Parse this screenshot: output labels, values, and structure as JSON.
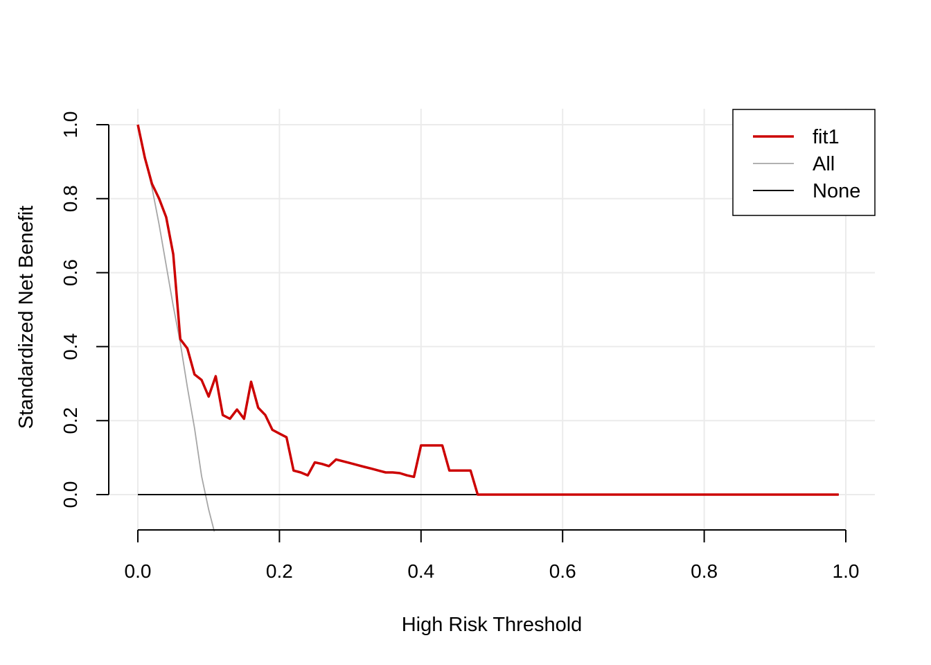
{
  "chart_data": {
    "type": "line",
    "xlabel": "High Risk Threshold",
    "ylabel": "Standardized Net Benefit",
    "xlim": [
      0.0,
      1.0
    ],
    "ylim": [
      -0.1,
      1.0
    ],
    "x_ticks": [
      "0.0",
      "0.2",
      "0.4",
      "0.6",
      "0.8",
      "1.0"
    ],
    "y_ticks": [
      "0.0",
      "0.2",
      "0.4",
      "0.6",
      "0.8",
      "1.0"
    ],
    "grid": true,
    "legend_position": "top-right",
    "series": [
      {
        "name": "fit1",
        "color": "#cc0000",
        "x": [
          0.0,
          0.01,
          0.02,
          0.03,
          0.04,
          0.05,
          0.06,
          0.07,
          0.08,
          0.09,
          0.1,
          0.11,
          0.12,
          0.13,
          0.14,
          0.15,
          0.16,
          0.17,
          0.18,
          0.19,
          0.2,
          0.21,
          0.22,
          0.23,
          0.24,
          0.25,
          0.26,
          0.27,
          0.28,
          0.29,
          0.3,
          0.31,
          0.32,
          0.33,
          0.34,
          0.35,
          0.36,
          0.37,
          0.38,
          0.39,
          0.4,
          0.41,
          0.42,
          0.43,
          0.44,
          0.45,
          0.46,
          0.47,
          0.48,
          0.99
        ],
        "y": [
          1.0,
          0.91,
          0.84,
          0.8,
          0.75,
          0.65,
          0.42,
          0.395,
          0.325,
          0.31,
          0.265,
          0.32,
          0.215,
          0.205,
          0.23,
          0.205,
          0.305,
          0.235,
          0.215,
          0.175,
          0.165,
          0.155,
          0.065,
          0.06,
          0.052,
          0.087,
          0.083,
          0.077,
          0.095,
          0.09,
          0.085,
          0.08,
          0.075,
          0.07,
          0.065,
          0.06,
          0.06,
          0.058,
          0.052,
          0.048,
          0.133,
          0.133,
          0.133,
          0.133,
          0.065,
          0.065,
          0.065,
          0.065,
          0.0,
          0.0
        ]
      },
      {
        "name": "All",
        "color": "#a6a6a6",
        "x": [
          0.0,
          0.01,
          0.02,
          0.03,
          0.04,
          0.05,
          0.06,
          0.07,
          0.08,
          0.09,
          0.1,
          0.108
        ],
        "y": [
          1.0,
          0.91,
          0.83,
          0.73,
          0.62,
          0.51,
          0.41,
          0.29,
          0.18,
          0.05,
          -0.04,
          -0.1
        ]
      },
      {
        "name": "None",
        "color": "#000000",
        "x": [
          0.0,
          0.99
        ],
        "y": [
          0.0,
          0.0
        ]
      }
    ]
  }
}
